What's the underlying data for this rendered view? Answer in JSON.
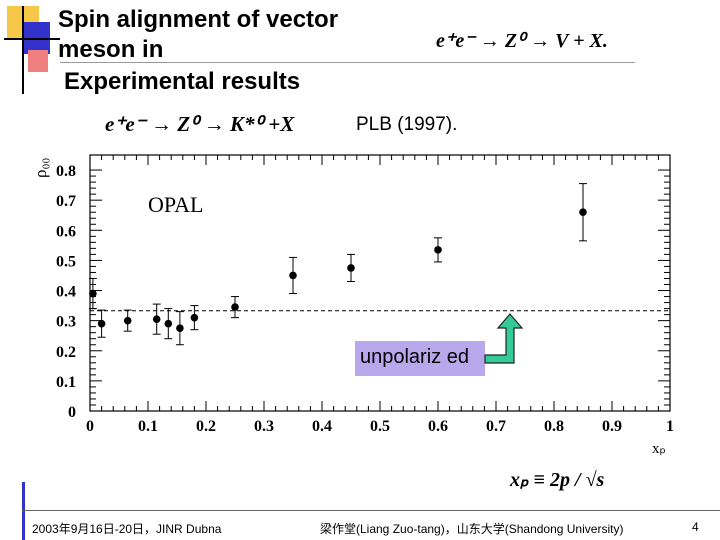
{
  "slide": {
    "title_line1": "Spin alignment of vector",
    "title_line2": "meson in",
    "title_line3": "Experimental results",
    "header_formula": "e⁺e⁻ → Z⁰ → V + X.",
    "reaction_formula": "e⁺e⁻ → Z⁰ → K*⁰ +X",
    "reference": "PLB (1997).",
    "xp_definition": "xₚ ≡ 2p / √s",
    "callout_text": "unpolariz ed",
    "footer_left": "2003年9月16日-20日，JINR Dubna",
    "footer_center": "梁作堂(Liang Zuo-tang)，山东大学(Shandong University)",
    "page_number": "4",
    "colors": {
      "callout_fill": "#b9a7ec",
      "arrow_fill": "#33cc99",
      "accent_bar": "#3333cc",
      "accent_square": "#f5c84a",
      "accent_square2": "#f08080"
    }
  },
  "chart_data": {
    "type": "scatter",
    "title": "OPAL",
    "xlabel": "xₚ",
    "ylabel": "ρ₀₀",
    "xlim": [
      0,
      1
    ],
    "ylim": [
      0,
      0.85
    ],
    "x_ticks": [
      "0",
      "0.1",
      "0.2",
      "0.3",
      "0.4",
      "0.5",
      "0.6",
      "0.7",
      "0.8",
      "0.9",
      "1"
    ],
    "y_ticks": [
      "0",
      "0.1",
      "0.2",
      "0.3",
      "0.4",
      "0.5",
      "0.6",
      "0.7",
      "0.8"
    ],
    "reference_line": {
      "y": 0.333,
      "style": "dashed",
      "label": "unpolarized"
    },
    "series": [
      {
        "x": [
          0.005,
          0.02,
          0.065,
          0.115,
          0.135,
          0.155,
          0.18,
          0.25,
          0.35,
          0.45,
          0.6,
          0.85
        ],
        "y": [
          0.39,
          0.29,
          0.3,
          0.305,
          0.29,
          0.275,
          0.31,
          0.345,
          0.45,
          0.475,
          0.535,
          0.66
        ],
        "err": [
          0.05,
          0.045,
          0.035,
          0.05,
          0.05,
          0.055,
          0.04,
          0.035,
          0.06,
          0.045,
          0.04,
          0.095
        ]
      }
    ]
  }
}
